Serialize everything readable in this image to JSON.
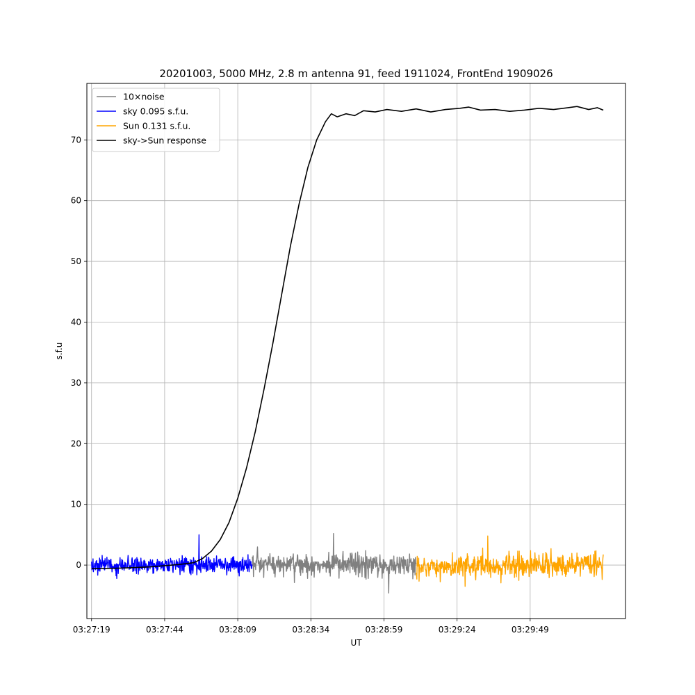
{
  "chart_data": {
    "type": "line",
    "title": "20201003, 5000 MHz, 2.8 m antenna 91, feed 1911024, FrontEnd 1909026",
    "xlabel": "UT",
    "ylabel": "s.f.u",
    "xlim": [
      "03:27:17.4",
      "03:30:21.6"
    ],
    "ylim": [
      -8.8,
      79.3
    ],
    "x_ticks": [
      "03:27:19",
      "03:27:44",
      "03:28:09",
      "03:28:34",
      "03:28:59",
      "03:29:24",
      "03:29:49"
    ],
    "y_ticks": [
      0,
      10,
      20,
      30,
      40,
      50,
      60,
      70
    ],
    "grid": true,
    "legend_position": "top-left",
    "series": [
      {
        "name": "10×noise",
        "color": "#808080",
        "x_range": [
          "03:28:14",
          "03:29:10"
        ],
        "mean": 0,
        "noise_amplitude": 1.3,
        "peak": 5.2,
        "trough": -4.6
      },
      {
        "name": "sky 0.095 s.f.u.",
        "color": "#0000ff",
        "x_range": [
          "03:27:19",
          "03:28:14"
        ],
        "mean": 0,
        "noise_amplitude": 0.9,
        "peak": 5.0,
        "trough": -2.2
      },
      {
        "name": "Sun 0.131 s.f.u.",
        "color": "#ffa500",
        "x_range": [
          "03:29:10",
          "03:30:14"
        ],
        "mean": 0,
        "noise_amplitude": 1.3,
        "peak": 4.8,
        "trough": -3.5
      },
      {
        "name": "sky->Sun response",
        "color": "#000000",
        "points": [
          [
            "03:27:19",
            -0.6
          ],
          [
            "03:27:29",
            -0.5
          ],
          [
            "03:27:39",
            -0.3
          ],
          [
            "03:27:49",
            0.1
          ],
          [
            "03:27:54",
            0.4
          ],
          [
            "03:27:57",
            1.1
          ],
          [
            "03:28:00",
            2.3
          ],
          [
            "03:28:03",
            4.2
          ],
          [
            "03:28:06",
            7.0
          ],
          [
            "03:28:09",
            11.0
          ],
          [
            "03:28:12",
            16.0
          ],
          [
            "03:28:15",
            22.0
          ],
          [
            "03:28:18",
            29.0
          ],
          [
            "03:28:21",
            36.5
          ],
          [
            "03:28:24",
            44.5
          ],
          [
            "03:28:27",
            52.5
          ],
          [
            "03:28:30",
            59.5
          ],
          [
            "03:28:33",
            65.5
          ],
          [
            "03:28:36",
            70.0
          ],
          [
            "03:28:39",
            73.0
          ],
          [
            "03:28:41",
            74.3
          ],
          [
            "03:28:43",
            73.8
          ],
          [
            "03:28:46",
            74.3
          ],
          [
            "03:28:49",
            74.0
          ],
          [
            "03:28:52",
            74.8
          ],
          [
            "03:28:56",
            74.6
          ],
          [
            "03:29:00",
            75.0
          ],
          [
            "03:29:05",
            74.7
          ],
          [
            "03:29:10",
            75.1
          ],
          [
            "03:29:15",
            74.6
          ],
          [
            "03:29:20",
            75.0
          ],
          [
            "03:29:25",
            75.2
          ],
          [
            "03:29:28",
            75.4
          ],
          [
            "03:29:32",
            74.9
          ],
          [
            "03:29:37",
            75.0
          ],
          [
            "03:29:42",
            74.7
          ],
          [
            "03:29:47",
            74.9
          ],
          [
            "03:29:52",
            75.2
          ],
          [
            "03:29:57",
            75.0
          ],
          [
            "03:30:02",
            75.3
          ],
          [
            "03:30:05",
            75.5
          ],
          [
            "03:30:09",
            75.0
          ],
          [
            "03:30:12",
            75.3
          ],
          [
            "03:30:14",
            74.9
          ]
        ]
      }
    ]
  }
}
